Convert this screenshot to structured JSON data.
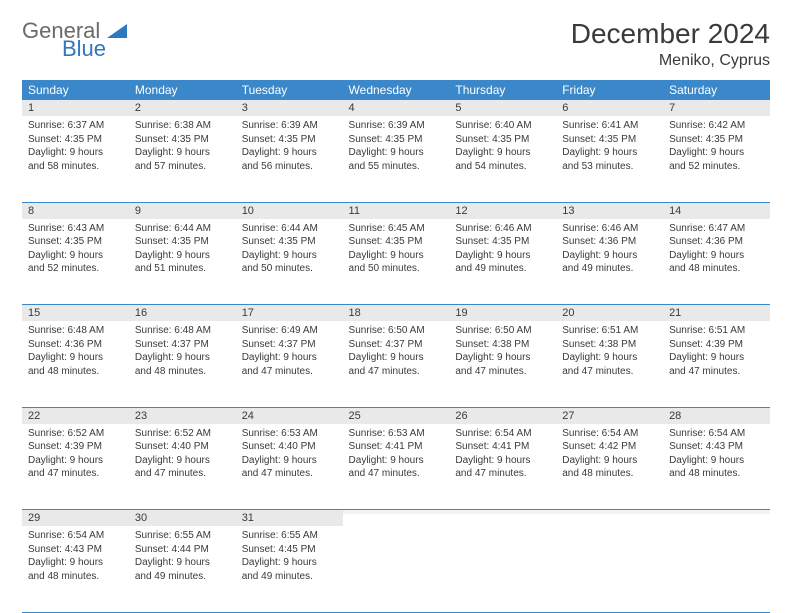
{
  "logo": {
    "general": "General",
    "blue": "Blue"
  },
  "title": "December 2024",
  "subtitle": "Meniko, Cyprus",
  "weekdays": [
    "Sunday",
    "Monday",
    "Tuesday",
    "Wednesday",
    "Thursday",
    "Friday",
    "Saturday"
  ],
  "colors": {
    "header_bg": "#3a87c9",
    "header_text": "#ffffff",
    "daynum_bg": "#e9e9e9",
    "row_border": "#3a87c9",
    "logo_blue": "#2f78bf",
    "logo_gray": "#6a6a6a"
  },
  "weeks": [
    [
      {
        "n": "1",
        "sr": "Sunrise: 6:37 AM",
        "ss": "Sunset: 4:35 PM",
        "d1": "Daylight: 9 hours",
        "d2": "and 58 minutes."
      },
      {
        "n": "2",
        "sr": "Sunrise: 6:38 AM",
        "ss": "Sunset: 4:35 PM",
        "d1": "Daylight: 9 hours",
        "d2": "and 57 minutes."
      },
      {
        "n": "3",
        "sr": "Sunrise: 6:39 AM",
        "ss": "Sunset: 4:35 PM",
        "d1": "Daylight: 9 hours",
        "d2": "and 56 minutes."
      },
      {
        "n": "4",
        "sr": "Sunrise: 6:39 AM",
        "ss": "Sunset: 4:35 PM",
        "d1": "Daylight: 9 hours",
        "d2": "and 55 minutes."
      },
      {
        "n": "5",
        "sr": "Sunrise: 6:40 AM",
        "ss": "Sunset: 4:35 PM",
        "d1": "Daylight: 9 hours",
        "d2": "and 54 minutes."
      },
      {
        "n": "6",
        "sr": "Sunrise: 6:41 AM",
        "ss": "Sunset: 4:35 PM",
        "d1": "Daylight: 9 hours",
        "d2": "and 53 minutes."
      },
      {
        "n": "7",
        "sr": "Sunrise: 6:42 AM",
        "ss": "Sunset: 4:35 PM",
        "d1": "Daylight: 9 hours",
        "d2": "and 52 minutes."
      }
    ],
    [
      {
        "n": "8",
        "sr": "Sunrise: 6:43 AM",
        "ss": "Sunset: 4:35 PM",
        "d1": "Daylight: 9 hours",
        "d2": "and 52 minutes."
      },
      {
        "n": "9",
        "sr": "Sunrise: 6:44 AM",
        "ss": "Sunset: 4:35 PM",
        "d1": "Daylight: 9 hours",
        "d2": "and 51 minutes."
      },
      {
        "n": "10",
        "sr": "Sunrise: 6:44 AM",
        "ss": "Sunset: 4:35 PM",
        "d1": "Daylight: 9 hours",
        "d2": "and 50 minutes."
      },
      {
        "n": "11",
        "sr": "Sunrise: 6:45 AM",
        "ss": "Sunset: 4:35 PM",
        "d1": "Daylight: 9 hours",
        "d2": "and 50 minutes."
      },
      {
        "n": "12",
        "sr": "Sunrise: 6:46 AM",
        "ss": "Sunset: 4:35 PM",
        "d1": "Daylight: 9 hours",
        "d2": "and 49 minutes."
      },
      {
        "n": "13",
        "sr": "Sunrise: 6:46 AM",
        "ss": "Sunset: 4:36 PM",
        "d1": "Daylight: 9 hours",
        "d2": "and 49 minutes."
      },
      {
        "n": "14",
        "sr": "Sunrise: 6:47 AM",
        "ss": "Sunset: 4:36 PM",
        "d1": "Daylight: 9 hours",
        "d2": "and 48 minutes."
      }
    ],
    [
      {
        "n": "15",
        "sr": "Sunrise: 6:48 AM",
        "ss": "Sunset: 4:36 PM",
        "d1": "Daylight: 9 hours",
        "d2": "and 48 minutes."
      },
      {
        "n": "16",
        "sr": "Sunrise: 6:48 AM",
        "ss": "Sunset: 4:37 PM",
        "d1": "Daylight: 9 hours",
        "d2": "and 48 minutes."
      },
      {
        "n": "17",
        "sr": "Sunrise: 6:49 AM",
        "ss": "Sunset: 4:37 PM",
        "d1": "Daylight: 9 hours",
        "d2": "and 47 minutes."
      },
      {
        "n": "18",
        "sr": "Sunrise: 6:50 AM",
        "ss": "Sunset: 4:37 PM",
        "d1": "Daylight: 9 hours",
        "d2": "and 47 minutes."
      },
      {
        "n": "19",
        "sr": "Sunrise: 6:50 AM",
        "ss": "Sunset: 4:38 PM",
        "d1": "Daylight: 9 hours",
        "d2": "and 47 minutes."
      },
      {
        "n": "20",
        "sr": "Sunrise: 6:51 AM",
        "ss": "Sunset: 4:38 PM",
        "d1": "Daylight: 9 hours",
        "d2": "and 47 minutes."
      },
      {
        "n": "21",
        "sr": "Sunrise: 6:51 AM",
        "ss": "Sunset: 4:39 PM",
        "d1": "Daylight: 9 hours",
        "d2": "and 47 minutes."
      }
    ],
    [
      {
        "n": "22",
        "sr": "Sunrise: 6:52 AM",
        "ss": "Sunset: 4:39 PM",
        "d1": "Daylight: 9 hours",
        "d2": "and 47 minutes."
      },
      {
        "n": "23",
        "sr": "Sunrise: 6:52 AM",
        "ss": "Sunset: 4:40 PM",
        "d1": "Daylight: 9 hours",
        "d2": "and 47 minutes."
      },
      {
        "n": "24",
        "sr": "Sunrise: 6:53 AM",
        "ss": "Sunset: 4:40 PM",
        "d1": "Daylight: 9 hours",
        "d2": "and 47 minutes."
      },
      {
        "n": "25",
        "sr": "Sunrise: 6:53 AM",
        "ss": "Sunset: 4:41 PM",
        "d1": "Daylight: 9 hours",
        "d2": "and 47 minutes."
      },
      {
        "n": "26",
        "sr": "Sunrise: 6:54 AM",
        "ss": "Sunset: 4:41 PM",
        "d1": "Daylight: 9 hours",
        "d2": "and 47 minutes."
      },
      {
        "n": "27",
        "sr": "Sunrise: 6:54 AM",
        "ss": "Sunset: 4:42 PM",
        "d1": "Daylight: 9 hours",
        "d2": "and 48 minutes."
      },
      {
        "n": "28",
        "sr": "Sunrise: 6:54 AM",
        "ss": "Sunset: 4:43 PM",
        "d1": "Daylight: 9 hours",
        "d2": "and 48 minutes."
      }
    ],
    [
      {
        "n": "29",
        "sr": "Sunrise: 6:54 AM",
        "ss": "Sunset: 4:43 PM",
        "d1": "Daylight: 9 hours",
        "d2": "and 48 minutes."
      },
      {
        "n": "30",
        "sr": "Sunrise: 6:55 AM",
        "ss": "Sunset: 4:44 PM",
        "d1": "Daylight: 9 hours",
        "d2": "and 49 minutes."
      },
      {
        "n": "31",
        "sr": "Sunrise: 6:55 AM",
        "ss": "Sunset: 4:45 PM",
        "d1": "Daylight: 9 hours",
        "d2": "and 49 minutes."
      },
      {
        "n": "",
        "empty": true
      },
      {
        "n": "",
        "empty": true
      },
      {
        "n": "",
        "empty": true
      },
      {
        "n": "",
        "empty": true
      }
    ]
  ]
}
